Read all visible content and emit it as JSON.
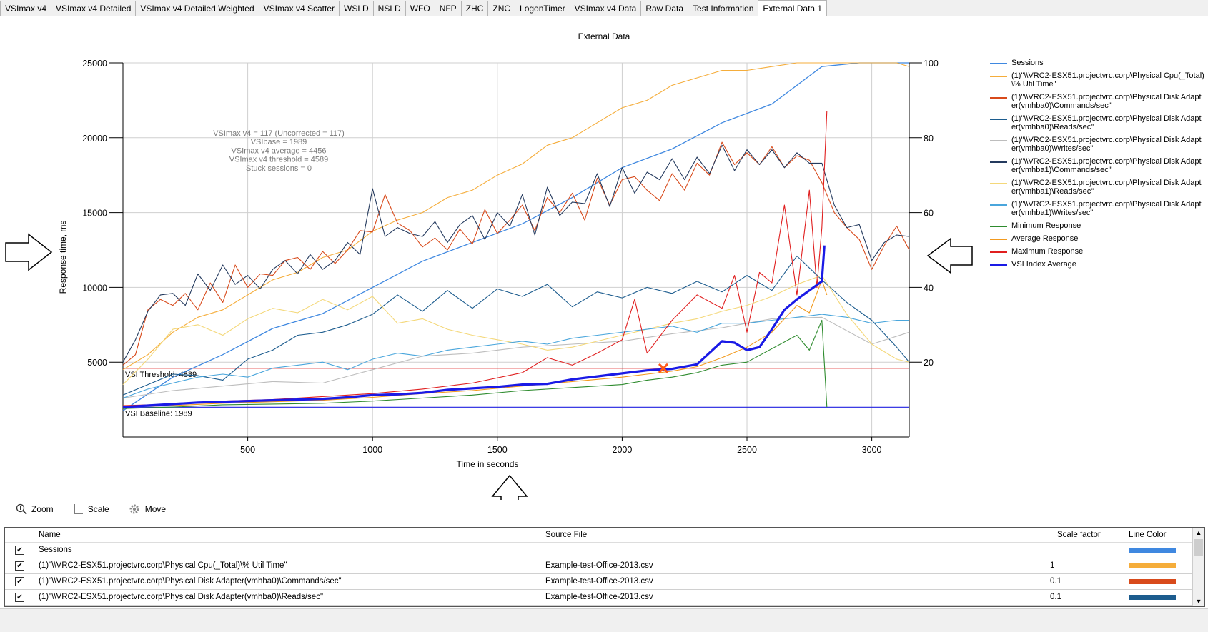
{
  "tabs": [
    "VSImax v4",
    "VSImax v4 Detailed",
    "VSImax v4 Detailed Weighted",
    "VSImax v4 Scatter",
    "WSLD",
    "NSLD",
    "WFO",
    "NFP",
    "ZHC",
    "ZNC",
    "LogonTimer",
    "VSImax v4 Data",
    "Raw Data",
    "Test Information",
    "External Data 1"
  ],
  "active_tab": "External Data 1",
  "tools": {
    "zoom": "Zoom",
    "scale": "Scale",
    "move": "Move"
  },
  "table": {
    "headers": {
      "name": "Name",
      "source": "Source File",
      "scale": "Scale factor",
      "color": "Line Color"
    },
    "rows": [
      {
        "name": "Sessions",
        "source": "",
        "scale": "",
        "color": "#3f88e0",
        "checked": true
      },
      {
        "name": "(1)\"\\\\VRC2-ESX51.projectvrc.corp\\Physical Cpu(_Total)\\% Util Time\"",
        "source": "Example-test-Office-2013.csv",
        "scale": "1",
        "color": "#f5ad3b",
        "checked": true
      },
      {
        "name": "(1)\"\\\\VRC2-ESX51.projectvrc.corp\\Physical Disk Adapter(vmhba0)\\Commands/sec\"",
        "source": "Example-test-Office-2013.csv",
        "scale": "0.1",
        "color": "#d84a1b",
        "checked": true
      },
      {
        "name": "(1)\"\\\\VRC2-ESX51.projectvrc.corp\\Physical Disk Adapter(vmhba0)\\Reads/sec\"",
        "source": "Example-test-Office-2013.csv",
        "scale": "0.1",
        "color": "#1c5c8e",
        "checked": true
      }
    ]
  },
  "chart_data": {
    "type": "line",
    "title": "External Data",
    "xlabel": "Time in seconds",
    "ylabel": "Response time, ms",
    "xlim": [
      0,
      3150
    ],
    "ylim": [
      0,
      25000
    ],
    "y2lim": [
      0,
      100
    ],
    "x_ticks": [
      500,
      1000,
      1500,
      2000,
      2500,
      3000
    ],
    "y_ticks": [
      5000,
      10000,
      15000,
      20000,
      25000
    ],
    "y2_ticks": [
      20,
      40,
      60,
      80,
      100
    ],
    "grid": true,
    "legend_position": "right",
    "annotations": [
      "VSImax v4 = 117 (Uncorrected = 117)",
      "VSIbase = 1989",
      "VSImax v4 average = 4456",
      "VSImax v4 threshold = 4589",
      "Stuck sessions = 0"
    ],
    "reference_lines": [
      {
        "label": "VSI Threshold: 4589",
        "y": 4589,
        "color": "#e03030"
      },
      {
        "label": "VSI Baseline: 1989",
        "y": 1989,
        "color": "#2020e0"
      }
    ],
    "vsimax_marker": {
      "x": 2165,
      "y": 4589,
      "color": "#ff5a1a"
    },
    "series": [
      {
        "name": "Sessions",
        "axis": "right",
        "color": "#3f88e0",
        "width": 1.3,
        "x": [
          0,
          200,
          400,
          600,
          800,
          1000,
          1200,
          1400,
          1600,
          1800,
          2000,
          2200,
          2400,
          2600,
          2800,
          2950,
          3150
        ],
        "y": [
          7,
          16,
          22,
          29,
          33,
          40,
          47,
          52,
          57,
          64,
          72,
          77,
          84,
          89,
          99,
          100,
          100
        ]
      },
      {
        "name": "(1)\"\\\\VRC2-ESX51.projectvrc.corp\\Physical Cpu(_Total)\\% Util Time\"",
        "axis": "right",
        "color": "#f5ad3b",
        "width": 1.1,
        "x": [
          0,
          100,
          200,
          300,
          400,
          500,
          600,
          700,
          800,
          900,
          1000,
          1100,
          1200,
          1300,
          1400,
          1500,
          1600,
          1700,
          1800,
          1900,
          2000,
          2100,
          2200,
          2300,
          2400,
          2500,
          2600,
          2700,
          2800,
          2900,
          3000,
          3100,
          3150
        ],
        "y": [
          18,
          22,
          28,
          32,
          34,
          38,
          42,
          44,
          48,
          50,
          55,
          58,
          60,
          64,
          66,
          70,
          73,
          78,
          80,
          84,
          88,
          90,
          94,
          96,
          98,
          98,
          99,
          100,
          100,
          100,
          100,
          100,
          99
        ]
      },
      {
        "name": "(1)\"\\\\VRC2-ESX51.projectvrc.corp\\Physical Disk Adapter(vmhba0)\\Commands/sec\"",
        "axis": "left",
        "color": "#d84a1b",
        "width": 1.1,
        "x": [
          0,
          50,
          100,
          150,
          200,
          250,
          300,
          350,
          400,
          450,
          500,
          550,
          600,
          650,
          700,
          750,
          800,
          850,
          900,
          950,
          1000,
          1050,
          1100,
          1150,
          1200,
          1250,
          1300,
          1350,
          1400,
          1450,
          1500,
          1550,
          1600,
          1650,
          1700,
          1750,
          1800,
          1850,
          1900,
          1950,
          2000,
          2050,
          2100,
          2150,
          2200,
          2250,
          2300,
          2350,
          2400,
          2450,
          2500,
          2550,
          2600,
          2650,
          2700,
          2750,
          2800,
          2850,
          2900,
          2950,
          3000,
          3050,
          3100,
          3150
        ],
        "y": [
          4800,
          5500,
          8500,
          9200,
          8800,
          9600,
          8500,
          10300,
          9000,
          11500,
          10000,
          10900,
          10800,
          11800,
          12000,
          11200,
          12400,
          11600,
          12500,
          13800,
          13700,
          16200,
          14300,
          13800,
          12700,
          13300,
          12500,
          13900,
          12900,
          15200,
          13600,
          14500,
          15500,
          13800,
          16000,
          15000,
          16300,
          14500,
          17300,
          15500,
          17200,
          17400,
          16500,
          15800,
          17600,
          16500,
          18300,
          17500,
          19700,
          18200,
          19000,
          18200,
          19400,
          18000,
          18800,
          18500,
          17000,
          15000,
          14000,
          13200,
          11200,
          12800,
          14100,
          12500
        ]
      },
      {
        "name": "(1)\"\\\\VRC2-ESX51.projectvrc.corp\\Physical Disk Adapter(vmhba0)\\Reads/sec\"",
        "axis": "left",
        "color": "#1c5c8e",
        "width": 1.1,
        "x": [
          0,
          100,
          200,
          300,
          400,
          500,
          600,
          700,
          800,
          900,
          1000,
          1100,
          1200,
          1300,
          1400,
          1500,
          1600,
          1700,
          1800,
          1900,
          2000,
          2100,
          2200,
          2300,
          2400,
          2500,
          2600,
          2700,
          2800,
          2900,
          3000,
          3100,
          3150
        ],
        "y": [
          2800,
          3500,
          4200,
          4100,
          3800,
          5200,
          5800,
          6800,
          7000,
          7500,
          8200,
          9500,
          8400,
          9800,
          8600,
          9900,
          9400,
          10200,
          8700,
          9700,
          9300,
          10000,
          9600,
          10400,
          9700,
          10800,
          9800,
          12100,
          10500,
          9000,
          7800,
          6000,
          5000
        ]
      },
      {
        "name": "(1)\"\\\\VRC2-ESX51.projectvrc.corp\\Physical Disk Adapter(vmhba0)\\Writes/sec\"",
        "axis": "left",
        "color": "#bdbdbd",
        "width": 1.1,
        "x": [
          0,
          200,
          400,
          600,
          800,
          1000,
          1200,
          1400,
          1600,
          1800,
          2000,
          2200,
          2400,
          2600,
          2800,
          3000,
          3150
        ],
        "y": [
          2600,
          3100,
          3400,
          3700,
          3600,
          4500,
          5400,
          5600,
          6000,
          6200,
          6400,
          6900,
          7300,
          7900,
          8000,
          6200,
          7000
        ]
      },
      {
        "name": "(1)\"\\\\VRC2-ESX51.projectvrc.corp\\Physical Disk Adapter(vmhba1)\\Commands/sec\"",
        "axis": "left",
        "color": "#243a5e",
        "width": 1.1,
        "x": [
          0,
          50,
          100,
          150,
          200,
          250,
          300,
          350,
          400,
          450,
          500,
          550,
          600,
          650,
          700,
          750,
          800,
          850,
          900,
          950,
          1000,
          1050,
          1100,
          1150,
          1200,
          1250,
          1300,
          1350,
          1400,
          1450,
          1500,
          1550,
          1600,
          1650,
          1700,
          1750,
          1800,
          1850,
          1900,
          1950,
          2000,
          2050,
          2100,
          2150,
          2200,
          2250,
          2300,
          2350,
          2400,
          2450,
          2500,
          2550,
          2600,
          2650,
          2700,
          2750,
          2800,
          2850,
          2900,
          2950,
          3000,
          3050,
          3100,
          3150
        ],
        "y": [
          5000,
          6500,
          8400,
          9500,
          9600,
          8800,
          10900,
          9800,
          11500,
          10200,
          10800,
          9900,
          11200,
          11800,
          10900,
          12200,
          11200,
          11800,
          13000,
          12200,
          16600,
          13400,
          14000,
          13600,
          13400,
          14400,
          13000,
          14200,
          14800,
          13200,
          15000,
          14100,
          16200,
          13500,
          16700,
          14800,
          15700,
          15600,
          17600,
          15400,
          18000,
          16300,
          17700,
          17200,
          18600,
          17200,
          18700,
          17600,
          19500,
          17800,
          19200,
          18200,
          19200,
          18000,
          19000,
          18300,
          18300,
          15500,
          14000,
          14200,
          11800,
          13000,
          13500,
          13400
        ]
      },
      {
        "name": "(1)\"\\\\VRC2-ESX51.projectvrc.corp\\Physical Disk Adapter(vmhba1)\\Reads/sec\"",
        "axis": "left",
        "color": "#f4d87a",
        "width": 1.1,
        "x": [
          0,
          100,
          200,
          300,
          400,
          500,
          600,
          700,
          800,
          900,
          1000,
          1100,
          1200,
          1300,
          1400,
          1500,
          1600,
          1700,
          1800,
          1900,
          2000,
          2100,
          2200,
          2300,
          2400,
          2500,
          2600,
          2700,
          2800,
          2900,
          3000,
          3100,
          3150
        ],
        "y": [
          3500,
          5200,
          7200,
          7500,
          6800,
          7900,
          8600,
          8300,
          9200,
          8500,
          9400,
          7600,
          7900,
          7200,
          6800,
          6500,
          6200,
          5800,
          6000,
          6400,
          6800,
          7200,
          7600,
          7900,
          8400,
          8800,
          9400,
          10200,
          10800,
          8200,
          6200,
          5200,
          5000
        ]
      },
      {
        "name": "(1)\"\\\\VRC2-ESX51.projectvrc.corp\\Physical Disk Adapter(vmhba1)\\Writes/sec\"",
        "axis": "left",
        "color": "#4aa6dc",
        "width": 1.1,
        "x": [
          0,
          100,
          200,
          300,
          400,
          500,
          600,
          700,
          800,
          900,
          1000,
          1100,
          1200,
          1300,
          1400,
          1500,
          1600,
          1700,
          1800,
          1900,
          2000,
          2100,
          2200,
          2300,
          2400,
          2500,
          2600,
          2700,
          2800,
          2900,
          3000,
          3100,
          3150
        ],
        "y": [
          2600,
          3200,
          3600,
          4000,
          4200,
          4000,
          4600,
          4800,
          5000,
          4500,
          5200,
          5600,
          5400,
          5800,
          6000,
          6200,
          6400,
          6200,
          6600,
          6800,
          7000,
          7200,
          7400,
          7000,
          7600,
          7600,
          7800,
          8000,
          8200,
          8000,
          7600,
          7800,
          7800
        ]
      },
      {
        "name": "Minimum Response",
        "axis": "left",
        "color": "#2e8b2e",
        "width": 1.1,
        "x": [
          0,
          200,
          400,
          600,
          800,
          1000,
          1200,
          1400,
          1600,
          1800,
          2000,
          2100,
          2200,
          2300,
          2400,
          2500,
          2600,
          2700,
          2750,
          2800,
          2820
        ],
        "y": [
          1900,
          2000,
          2150,
          2200,
          2250,
          2400,
          2600,
          2800,
          3100,
          3300,
          3500,
          3800,
          4000,
          4300,
          4800,
          5000,
          5900,
          6800,
          5800,
          7800,
          2000
        ]
      },
      {
        "name": "Average Response",
        "axis": "left",
        "color": "#f29a1f",
        "width": 1.1,
        "x": [
          0,
          200,
          400,
          600,
          800,
          1000,
          1200,
          1400,
          1600,
          1800,
          2000,
          2100,
          2200,
          2300,
          2400,
          2500,
          2600,
          2700,
          2750,
          2800,
          2820
        ],
        "y": [
          2000,
          2100,
          2250,
          2350,
          2450,
          2650,
          2900,
          3100,
          3400,
          3700,
          4000,
          4200,
          4400,
          4700,
          5300,
          6000,
          7000,
          8800,
          8300,
          10500,
          9500
        ]
      },
      {
        "name": "Maximum Response",
        "axis": "left",
        "color": "#e01f1f",
        "width": 1.1,
        "x": [
          0,
          200,
          400,
          600,
          800,
          1000,
          1200,
          1400,
          1600,
          1700,
          1800,
          1900,
          2000,
          2050,
          2100,
          2200,
          2300,
          2400,
          2450,
          2500,
          2550,
          2600,
          2650,
          2700,
          2750,
          2780,
          2800,
          2820
        ],
        "y": [
          2100,
          2200,
          2400,
          2500,
          2700,
          2900,
          3200,
          3600,
          4300,
          5300,
          4800,
          5600,
          6500,
          9200,
          5600,
          7800,
          9500,
          8600,
          10800,
          7000,
          11000,
          10300,
          15500,
          9500,
          16500,
          10000,
          14000,
          21800
        ]
      },
      {
        "name": "VSI Index Average",
        "axis": "left",
        "color": "#1a1ae6",
        "width": 3.2,
        "x": [
          0,
          100,
          200,
          300,
          400,
          500,
          600,
          700,
          800,
          900,
          1000,
          1100,
          1200,
          1300,
          1400,
          1500,
          1600,
          1700,
          1800,
          1900,
          2000,
          2100,
          2200,
          2300,
          2400,
          2450,
          2500,
          2550,
          2600,
          2650,
          2700,
          2750,
          2800,
          2810
        ],
        "y": [
          2000,
          2100,
          2200,
          2300,
          2350,
          2400,
          2450,
          2500,
          2550,
          2650,
          2800,
          2850,
          2950,
          3150,
          3250,
          3350,
          3500,
          3550,
          3850,
          4050,
          4250,
          4450,
          4550,
          4850,
          6400,
          6300,
          5800,
          6000,
          7200,
          8500,
          9200,
          9800,
          10400,
          12800
        ]
      }
    ]
  }
}
